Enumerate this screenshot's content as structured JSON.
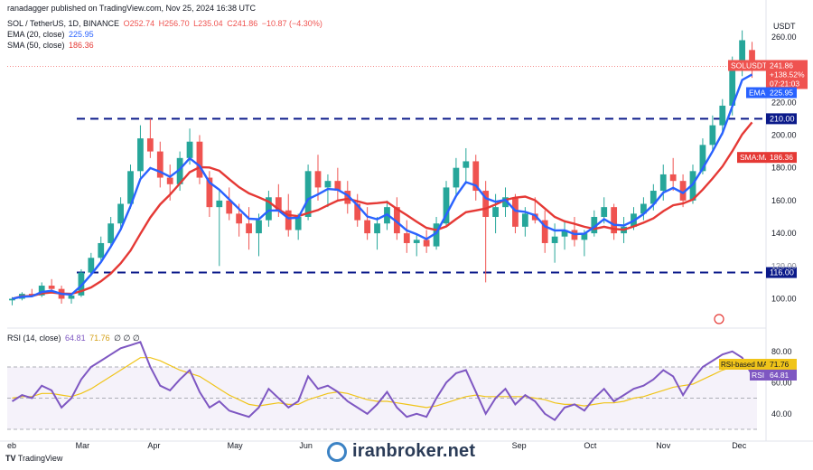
{
  "header": {
    "published_by": "ranadagger published on TradingView.com, Nov 25, 2024 16:38 UTC",
    "symbol_line": "SOL / TetherUS, 1D, BINANCE",
    "o": "O252.74",
    "h": "H256.70",
    "l": "L235.04",
    "c": "C241.86",
    "chg": "−10.87 (−4.30%)",
    "ema_label": "EMA (20, close)",
    "ema_value": "225.95",
    "sma_label": "SMA (50, close)",
    "sma_value": "186.36",
    "rsi_label": "RSI (14, close)",
    "rsi_value": "64.81",
    "rsi_ma_value": "71.76",
    "rsi_extra": "∅  ∅  ∅"
  },
  "currency": "USDT",
  "watermark": "iranbroker.net",
  "tv_brand": "TradingView",
  "colors": {
    "up": "#26a69a",
    "down": "#ef5350",
    "ema": "#2962ff",
    "sma": "#e53935",
    "rsi": "#7e57c2",
    "rsi_ma": "#f0c419",
    "level": "#0b1a8a",
    "price_tag": "#ef5350"
  },
  "chart_data": [
    {
      "type": "candlestick",
      "title": "SOL / TetherUS, 1D, BINANCE",
      "x_ticks": [
        "eb",
        "Mar",
        "Apr",
        "May",
        "Jun",
        "Sep",
        "Oct",
        "Nov",
        "Dec"
      ],
      "y_ticks": [
        100,
        120,
        140,
        160,
        180,
        200,
        220,
        240,
        260
      ],
      "ylim": [
        92,
        266
      ],
      "candles": [
        [
          99,
          101,
          96,
          100
        ],
        [
          100,
          104,
          99,
          103
        ],
        [
          103,
          106,
          101,
          102
        ],
        [
          102,
          110,
          101,
          108
        ],
        [
          108,
          112,
          104,
          106
        ],
        [
          106,
          108,
          97,
          100
        ],
        [
          100,
          103,
          97,
          102
        ],
        [
          102,
          118,
          101,
          116
        ],
        [
          116,
          128,
          114,
          125
        ],
        [
          125,
          138,
          122,
          134
        ],
        [
          134,
          150,
          131,
          146
        ],
        [
          146,
          162,
          143,
          158
        ],
        [
          158,
          182,
          155,
          178
        ],
        [
          178,
          206,
          174,
          198
        ],
        [
          198,
          210,
          186,
          190
        ],
        [
          190,
          196,
          168,
          174
        ],
        [
          174,
          182,
          160,
          170
        ],
        [
          170,
          190,
          166,
          186
        ],
        [
          186,
          204,
          182,
          196
        ],
        [
          196,
          200,
          170,
          174
        ],
        [
          174,
          178,
          150,
          156
        ],
        [
          156,
          166,
          120,
          160
        ],
        [
          160,
          168,
          148,
          152
        ],
        [
          152,
          158,
          138,
          146
        ],
        [
          146,
          156,
          130,
          140
        ],
        [
          140,
          152,
          126,
          148
        ],
        [
          148,
          166,
          144,
          162
        ],
        [
          162,
          170,
          150,
          154
        ],
        [
          154,
          164,
          138,
          142
        ],
        [
          142,
          152,
          136,
          150
        ],
        [
          150,
          182,
          148,
          178
        ],
        [
          178,
          188,
          160,
          168
        ],
        [
          168,
          176,
          156,
          172
        ],
        [
          172,
          180,
          160,
          166
        ],
        [
          166,
          172,
          152,
          158
        ],
        [
          158,
          164,
          144,
          148
        ],
        [
          148,
          156,
          136,
          140
        ],
        [
          140,
          150,
          130,
          146
        ],
        [
          146,
          160,
          142,
          156
        ],
        [
          156,
          162,
          136,
          140
        ],
        [
          140,
          148,
          128,
          134
        ],
        [
          134,
          140,
          126,
          136
        ],
        [
          136,
          142,
          128,
          132
        ],
        [
          132,
          150,
          130,
          146
        ],
        [
          146,
          172,
          144,
          168
        ],
        [
          168,
          186,
          162,
          180
        ],
        [
          180,
          192,
          170,
          184
        ],
        [
          184,
          188,
          160,
          166
        ],
        [
          166,
          172,
          110,
          150
        ],
        [
          150,
          164,
          140,
          156
        ],
        [
          156,
          168,
          150,
          162
        ],
        [
          162,
          164,
          140,
          144
        ],
        [
          144,
          156,
          138,
          152
        ],
        [
          152,
          162,
          146,
          148
        ],
        [
          148,
          154,
          128,
          134
        ],
        [
          134,
          146,
          122,
          138
        ],
        [
          138,
          148,
          130,
          142
        ],
        [
          142,
          150,
          132,
          136
        ],
        [
          136,
          142,
          126,
          140
        ],
        [
          140,
          154,
          138,
          150
        ],
        [
          150,
          162,
          146,
          156
        ],
        [
          156,
          158,
          136,
          140
        ],
        [
          140,
          150,
          134,
          144
        ],
        [
          144,
          156,
          142,
          152
        ],
        [
          152,
          162,
          148,
          158
        ],
        [
          158,
          170,
          154,
          166
        ],
        [
          166,
          182,
          160,
          176
        ],
        [
          176,
          186,
          166,
          172
        ],
        [
          172,
          176,
          156,
          160
        ],
        [
          160,
          182,
          158,
          178
        ],
        [
          178,
          198,
          176,
          194
        ],
        [
          194,
          212,
          190,
          206
        ],
        [
          206,
          222,
          200,
          218
        ],
        [
          218,
          248,
          212,
          242
        ],
        [
          242,
          264,
          236,
          258
        ],
        [
          252,
          257,
          235,
          242
        ]
      ]
    },
    {
      "type": "line",
      "title": "RSI (14, close)",
      "y_ticks": [
        40,
        60,
        80
      ],
      "ylim": [
        30,
        88
      ],
      "series": [
        {
          "name": "RSI",
          "values": [
            48,
            52,
            50,
            58,
            55,
            44,
            50,
            62,
            70,
            74,
            78,
            82,
            84,
            86,
            70,
            58,
            55,
            62,
            68,
            54,
            44,
            48,
            42,
            40,
            38,
            44,
            56,
            50,
            44,
            48,
            64,
            56,
            58,
            54,
            48,
            44,
            40,
            46,
            54,
            44,
            38,
            40,
            38,
            50,
            60,
            66,
            68,
            54,
            40,
            50,
            56,
            46,
            52,
            48,
            40,
            36,
            44,
            46,
            42,
            50,
            56,
            48,
            52,
            56,
            58,
            62,
            68,
            64,
            52,
            62,
            70,
            74,
            78,
            80,
            76,
            65
          ]
        },
        {
          "name": "RSI-based MA",
          "values": [
            50,
            51,
            51,
            53,
            53,
            52,
            51,
            53,
            56,
            60,
            64,
            68,
            72,
            76,
            76,
            74,
            71,
            68,
            66,
            64,
            60,
            56,
            52,
            49,
            46,
            45,
            46,
            47,
            46,
            46,
            49,
            51,
            53,
            54,
            53,
            51,
            49,
            48,
            48,
            47,
            46,
            45,
            44,
            45,
            47,
            49,
            51,
            52,
            51,
            51,
            51,
            51,
            51,
            50,
            49,
            47,
            46,
            46,
            45,
            46,
            47,
            47,
            48,
            50,
            51,
            53,
            55,
            57,
            58,
            59,
            62,
            65,
            68,
            70,
            72,
            72
          ]
        }
      ]
    }
  ],
  "levels": [
    {
      "label": "210.00",
      "value": 210
    },
    {
      "label": "116.00",
      "value": 116
    }
  ],
  "tags": {
    "symbol": "SOLUSDT",
    "price": "241.86",
    "pct": "+138.52%",
    "countdown": "07:21:03",
    "ema": "EMA",
    "ema_val": "225.95",
    "sma": "SMA:MA",
    "sma_val": "186.36",
    "rsi_ma": "RSI-based MA",
    "rsi_ma_val": "71.76",
    "rsi": "RSI",
    "rsi_val": "64.81",
    "extra_120": "120.00"
  }
}
